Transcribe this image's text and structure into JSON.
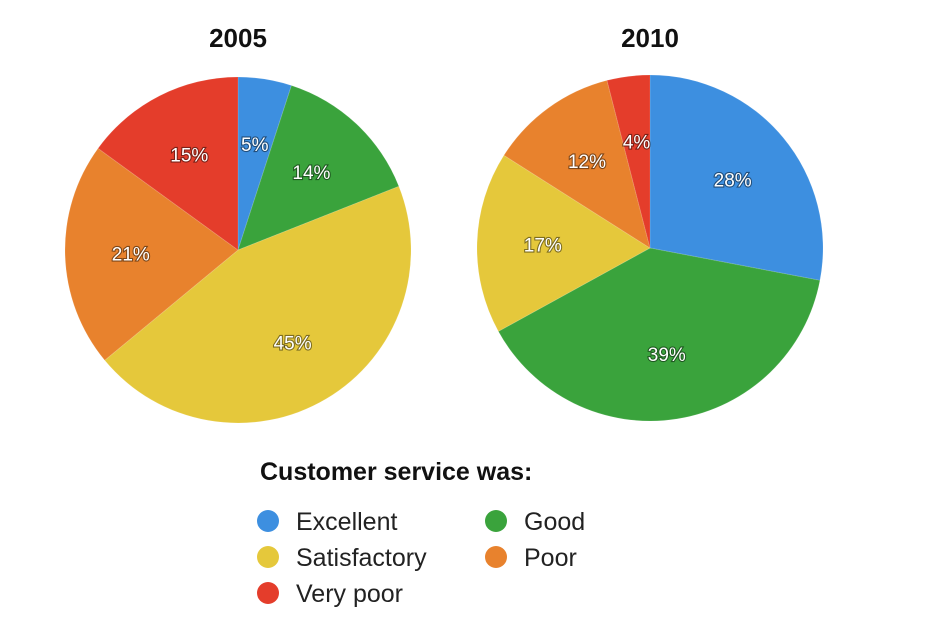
{
  "legend": {
    "title": "Customer service was:",
    "items": [
      {
        "label": "Excellent",
        "color": "#3d8fe0"
      },
      {
        "label": "Good",
        "color": "#3aa33c"
      },
      {
        "label": "Satisfactory",
        "color": "#e5c83b"
      },
      {
        "label": "Poor",
        "color": "#e8822d"
      },
      {
        "label": "Very poor",
        "color": "#e43d2b"
      }
    ]
  },
  "chart_data": [
    {
      "type": "pie",
      "title": "2005",
      "start_angle_deg": 0,
      "direction": "clockwise",
      "slices": [
        {
          "category": "Excellent",
          "value": 5,
          "label": "5%"
        },
        {
          "category": "Good",
          "value": 14,
          "label": "14%"
        },
        {
          "category": "Satisfactory",
          "value": 45,
          "label": "45%"
        },
        {
          "category": "Poor",
          "value": 21,
          "label": "21%"
        },
        {
          "category": "Very poor",
          "value": 15,
          "label": "15%"
        }
      ]
    },
    {
      "type": "pie",
      "title": "2010",
      "start_angle_deg": 0,
      "direction": "clockwise",
      "slices": [
        {
          "category": "Excellent",
          "value": 28,
          "label": "28%"
        },
        {
          "category": "Good",
          "value": 39,
          "label": "39%"
        },
        {
          "category": "Satisfactory",
          "value": 17,
          "label": "17%"
        },
        {
          "category": "Poor",
          "value": 12,
          "label": "12%"
        },
        {
          "category": "Very poor",
          "value": 4,
          "label": "4%"
        }
      ]
    }
  ]
}
